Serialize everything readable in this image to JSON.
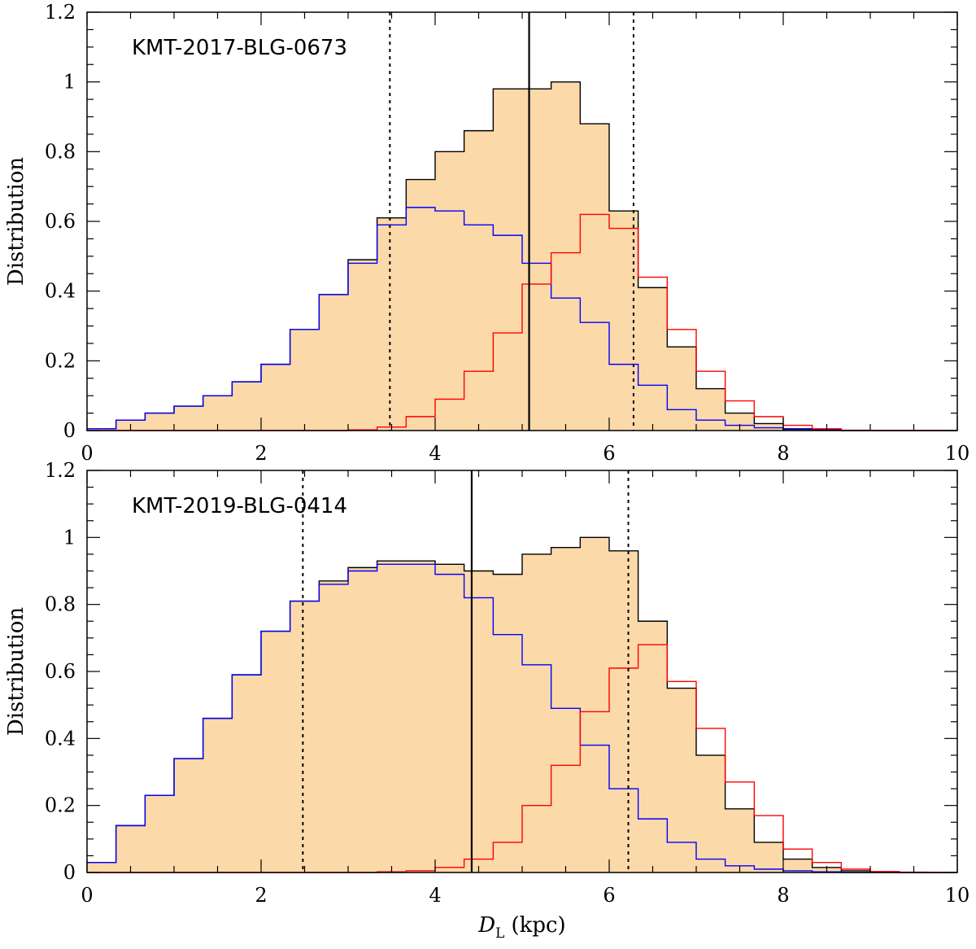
{
  "figure": {
    "x_label_main": "D",
    "x_label_sub": "L",
    "x_label_unit": "(kpc)"
  },
  "chart_data": [
    {
      "type": "histogram",
      "title": "KMT-2017-BLG-0673",
      "xlabel": "D_L (kpc)",
      "ylabel": "Distribution",
      "xlim": [
        0,
        10
      ],
      "ylim": [
        0,
        1.2
      ],
      "xticks": [
        0,
        2,
        4,
        6,
        8,
        10
      ],
      "yticks": [
        0,
        0.2,
        0.4,
        0.6,
        0.8,
        1,
        1.2
      ],
      "bin_edges": [
        0,
        0.333,
        0.667,
        1.0,
        1.333,
        1.667,
        2.0,
        2.333,
        2.667,
        3.0,
        3.333,
        3.667,
        4.0,
        4.333,
        4.667,
        5.0,
        5.333,
        5.667,
        6.0,
        6.333,
        6.667,
        7.0,
        7.333,
        7.667,
        8.0,
        8.333,
        8.667,
        9.0,
        9.333,
        9.667,
        10.0
      ],
      "series": [
        {
          "name": "total",
          "color": "#000000",
          "fill": "#fcd9a9",
          "values": [
            0.005,
            0.03,
            0.05,
            0.07,
            0.1,
            0.14,
            0.19,
            0.29,
            0.39,
            0.49,
            0.61,
            0.72,
            0.8,
            0.86,
            0.98,
            0.98,
            1.0,
            0.88,
            0.63,
            0.41,
            0.24,
            0.12,
            0.05,
            0.02,
            0.005,
            0.002,
            0,
            0,
            0,
            0
          ]
        },
        {
          "name": "blue component",
          "color": "#0000ff",
          "values": [
            0.005,
            0.03,
            0.05,
            0.07,
            0.1,
            0.14,
            0.19,
            0.29,
            0.39,
            0.48,
            0.59,
            0.64,
            0.63,
            0.59,
            0.56,
            0.48,
            0.38,
            0.31,
            0.19,
            0.13,
            0.06,
            0.03,
            0.015,
            0.008,
            0.003,
            0.001,
            0,
            0,
            0,
            0
          ]
        },
        {
          "name": "red component",
          "color": "#ff0000",
          "values": [
            0,
            0,
            0,
            0,
            0,
            0,
            0,
            0,
            0,
            0.002,
            0.01,
            0.04,
            0.09,
            0.17,
            0.28,
            0.42,
            0.51,
            0.62,
            0.58,
            0.44,
            0.29,
            0.17,
            0.085,
            0.04,
            0.015,
            0.005,
            0.001,
            0,
            0,
            0
          ]
        }
      ],
      "vlines": {
        "median": 5.08,
        "lower": 3.48,
        "upper": 6.28
      }
    },
    {
      "type": "histogram",
      "title": "KMT-2019-BLG-0414",
      "xlabel": "D_L (kpc)",
      "ylabel": "Distribution",
      "xlim": [
        0,
        10
      ],
      "ylim": [
        0,
        1.2
      ],
      "xticks": [
        0,
        2,
        4,
        6,
        8,
        10
      ],
      "yticks": [
        0,
        0.2,
        0.4,
        0.6,
        0.8,
        1,
        1.2
      ],
      "bin_edges": [
        0,
        0.333,
        0.667,
        1.0,
        1.333,
        1.667,
        2.0,
        2.333,
        2.667,
        3.0,
        3.333,
        3.667,
        4.0,
        4.333,
        4.667,
        5.0,
        5.333,
        5.667,
        6.0,
        6.333,
        6.667,
        7.0,
        7.333,
        7.667,
        8.0,
        8.333,
        8.667,
        9.0,
        9.333,
        9.667,
        10.0
      ],
      "series": [
        {
          "name": "total",
          "color": "#000000",
          "fill": "#fcd9a9",
          "values": [
            0.03,
            0.14,
            0.23,
            0.34,
            0.46,
            0.59,
            0.72,
            0.81,
            0.87,
            0.91,
            0.93,
            0.93,
            0.92,
            0.9,
            0.89,
            0.95,
            0.97,
            1.0,
            0.96,
            0.75,
            0.55,
            0.35,
            0.19,
            0.09,
            0.04,
            0.015,
            0.005,
            0.001,
            0,
            0
          ]
        },
        {
          "name": "blue component",
          "color": "#0000ff",
          "values": [
            0.03,
            0.14,
            0.23,
            0.34,
            0.46,
            0.59,
            0.72,
            0.81,
            0.86,
            0.9,
            0.92,
            0.92,
            0.89,
            0.82,
            0.71,
            0.62,
            0.49,
            0.38,
            0.25,
            0.16,
            0.09,
            0.04,
            0.02,
            0.01,
            0.005,
            0.002,
            0,
            0,
            0,
            0
          ]
        },
        {
          "name": "red component",
          "color": "#ff0000",
          "values": [
            0,
            0,
            0,
            0,
            0,
            0,
            0,
            0,
            0,
            0,
            0.002,
            0.005,
            0.015,
            0.04,
            0.09,
            0.2,
            0.32,
            0.48,
            0.61,
            0.68,
            0.57,
            0.43,
            0.27,
            0.17,
            0.07,
            0.03,
            0.01,
            0.003,
            0.001,
            0
          ]
        }
      ],
      "vlines": {
        "median": 4.42,
        "lower": 2.48,
        "upper": 6.22
      }
    }
  ]
}
